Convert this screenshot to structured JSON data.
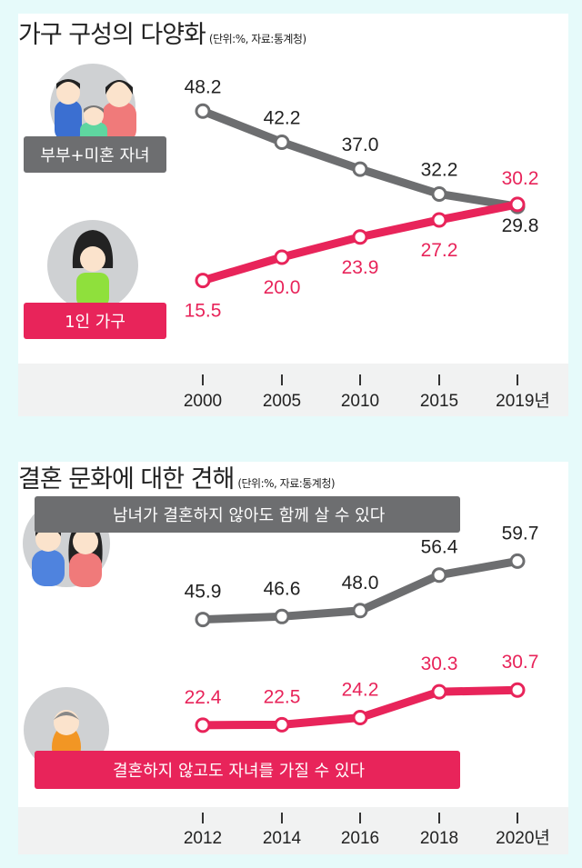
{
  "chart_data": [
    {
      "type": "line",
      "title": "가구 구성의 다양화",
      "subtitle": "(단위:%, 자료:통계청)",
      "categories": [
        "2000",
        "2005",
        "2010",
        "2015",
        "2019년"
      ],
      "series": [
        {
          "name": "부부+미혼 자녀",
          "color": "#6d6e70",
          "values": [
            48.2,
            42.2,
            37.0,
            32.2,
            29.8
          ],
          "labels": [
            "48.2",
            "42.2",
            "37.0",
            "32.2",
            "29.8"
          ]
        },
        {
          "name": "1인 가구",
          "color": "#e8245a",
          "values": [
            15.5,
            20.0,
            23.9,
            27.2,
            30.2
          ],
          "labels": [
            "15.5",
            "20.0",
            "23.9",
            "27.2",
            "30.2"
          ]
        }
      ]
    },
    {
      "type": "line",
      "title": "결혼 문화에 대한 견해",
      "subtitle": "(단위:%, 자료:통계청)",
      "categories": [
        "2012",
        "2014",
        "2016",
        "2018",
        "2020년"
      ],
      "series": [
        {
          "name": "남녀가 결혼하지 않아도 함께 살 수 있다",
          "color": "#6d6e70",
          "values": [
            45.9,
            46.6,
            48.0,
            56.4,
            59.7
          ],
          "labels": [
            "45.9",
            "46.6",
            "48.0",
            "56.4",
            "59.7"
          ]
        },
        {
          "name": "결혼하지 않고도 자녀를 가질 수 있다",
          "color": "#e8245a",
          "values": [
            22.4,
            22.5,
            24.2,
            30.3,
            30.7
          ],
          "labels": [
            "22.4",
            "22.5",
            "24.2",
            "30.3",
            "30.7"
          ]
        }
      ]
    }
  ]
}
